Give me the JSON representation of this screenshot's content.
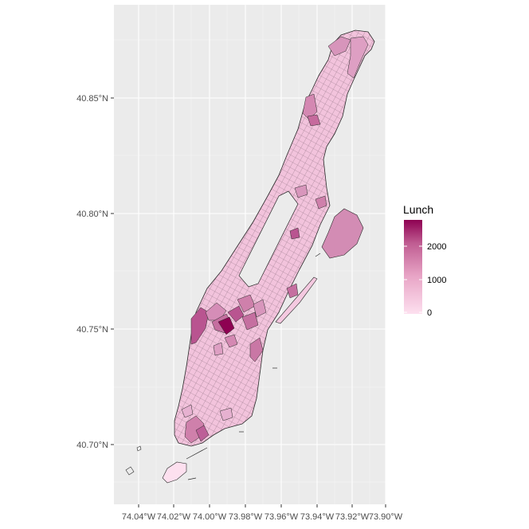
{
  "chart_data": {
    "type": "choropleth-map",
    "title": "",
    "xlabel": "",
    "ylabel": "",
    "fill_variable": "Lunch",
    "x_ticks": [
      "74.04°W",
      "74.02°W",
      "74.00°W",
      "73.98°W",
      "73.96°W",
      "73.94°W",
      "73.92°W",
      "73.90°W"
    ],
    "y_ticks": [
      "40.70°N",
      "40.75°N",
      "40.80°N",
      "40.85°N"
    ],
    "x_range": [
      -74.05,
      -73.9
    ],
    "y_range": [
      40.67,
      40.885
    ],
    "grid": true,
    "legend": {
      "title": "Lunch",
      "position": "right",
      "breaks": [
        "0",
        "1000",
        "2000"
      ],
      "range": [
        0,
        2700
      ],
      "color_low": "#fde0ef",
      "color_high": "#8e0152"
    }
  }
}
